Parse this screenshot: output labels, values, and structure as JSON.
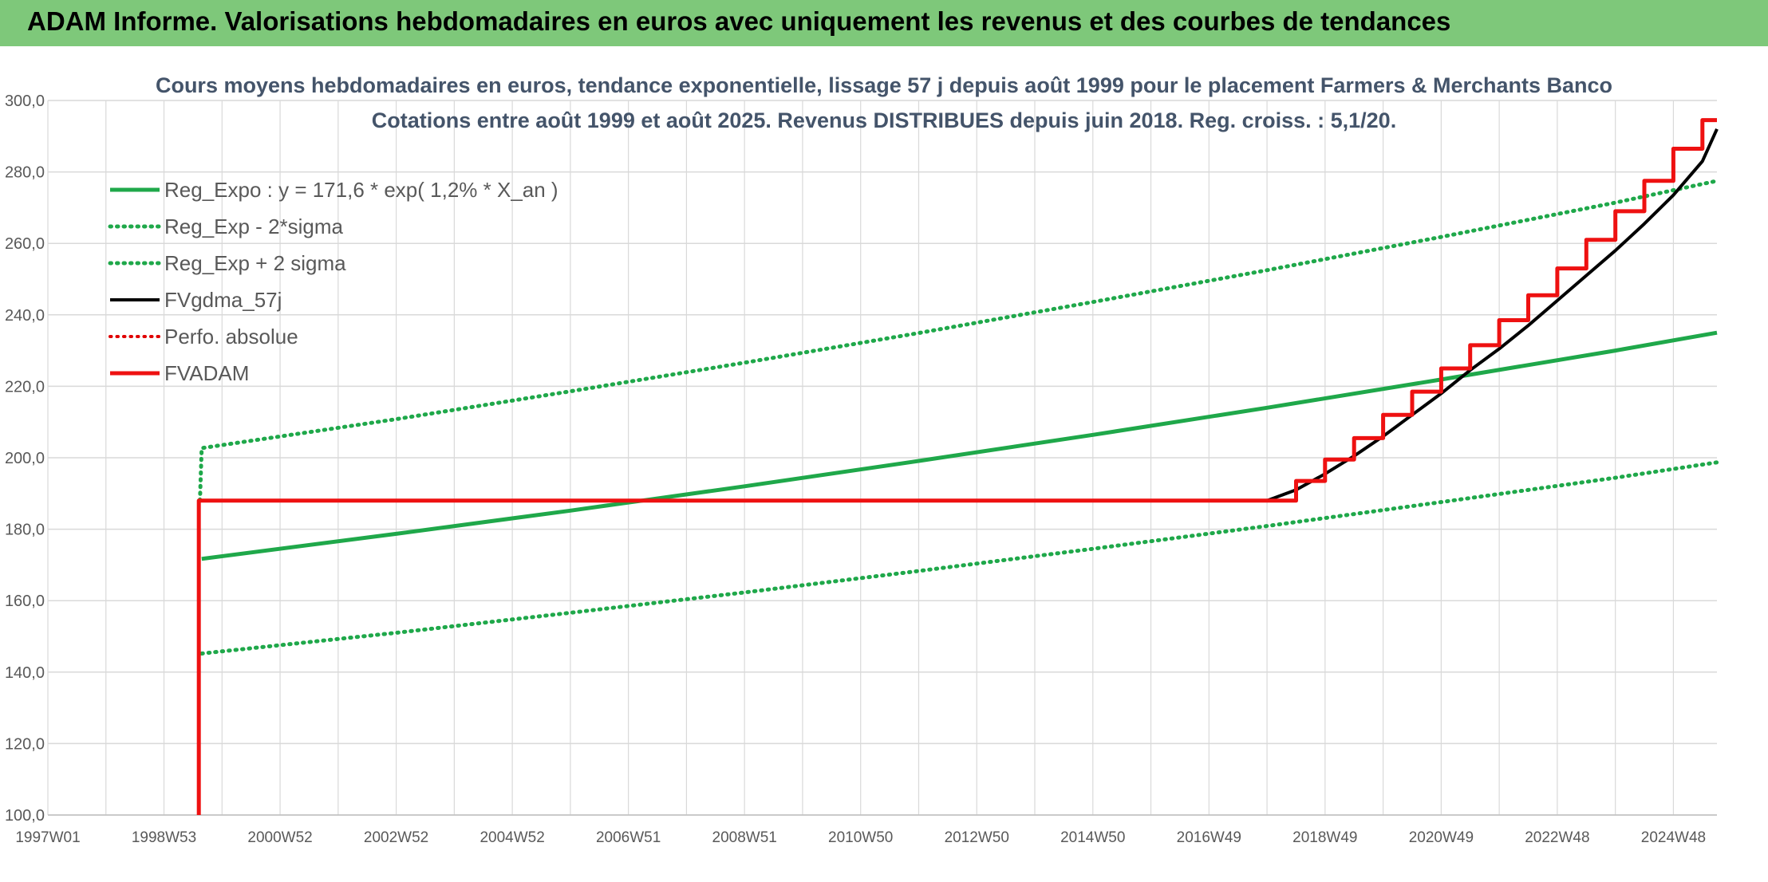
{
  "header": {
    "title": "ADAM Informe. Valorisations hebdomadaires en euros avec uniquement les revenus et des courbes de tendances"
  },
  "colors": {
    "banner": "#7ec87a",
    "reg_expo": "#1fa84a",
    "sigma": "#1fa84a",
    "fvgdma": "#000000",
    "perfo": "#e00000",
    "fvadam": "#ee1111",
    "grid": "#d9d9d9",
    "axis_text": "#595959",
    "title_text": "#44546a"
  },
  "chart_data": {
    "type": "line",
    "title": "Cours moyens hebdomadaires en euros, tendance exponentielle, lissage 57 j depuis août 1999 pour le placement Farmers & Merchants Banco",
    "subtitle": "Cotations entre août 1999 et août 2025. Revenus DISTRIBUES depuis juin 2018. Reg. croiss. : 5,1/20.",
    "xlabel": "",
    "ylabel": "",
    "ylim": [
      100,
      300
    ],
    "yticks": [
      "100,0",
      "120,0",
      "140,0",
      "160,0",
      "180,0",
      "200,0",
      "220,0",
      "240,0",
      "260,0",
      "280,0",
      "300,0"
    ],
    "xlim": [
      1997.0,
      2025.75
    ],
    "xticks": [
      {
        "label": "1997W01",
        "x": 1997.0
      },
      {
        "label": "1998W53",
        "x": 1999.0
      },
      {
        "label": "2000W52",
        "x": 2001.0
      },
      {
        "label": "2002W52",
        "x": 2003.0
      },
      {
        "label": "2004W52",
        "x": 2005.0
      },
      {
        "label": "2006W51",
        "x": 2007.0
      },
      {
        "label": "2008W51",
        "x": 2009.0
      },
      {
        "label": "2010W50",
        "x": 2011.0
      },
      {
        "label": "2012W50",
        "x": 2013.0
      },
      {
        "label": "2014W50",
        "x": 2015.0
      },
      {
        "label": "2016W49",
        "x": 2017.0
      },
      {
        "label": "2018W49",
        "x": 2019.0
      },
      {
        "label": "2020W49",
        "x": 2021.0
      },
      {
        "label": "2022W48",
        "x": 2023.0
      },
      {
        "label": "2024W48",
        "x": 2025.0
      }
    ],
    "grid": true,
    "legend_position": "top-left",
    "series": [
      {
        "name": "Reg_Expo : y = 171,6 * exp( 1,2% *  X_an )",
        "style": "solid",
        "color": "#1fa84a",
        "width": 5,
        "x": [
          1999.65,
          2003.0,
          2006.0,
          2009.0,
          2012.0,
          2015.0,
          2018.0,
          2021.0,
          2024.0,
          2025.75
        ],
        "y": [
          171.7,
          178.7,
          185.2,
          192.0,
          199.1,
          206.4,
          214.0,
          221.9,
          230.0,
          235.0
        ]
      },
      {
        "name": "Reg_Exp - 2*sigma",
        "style": "dotted",
        "color": "#1fa84a",
        "width": 5,
        "x": [
          1999.65,
          2003.0,
          2006.0,
          2009.0,
          2012.0,
          2015.0,
          2018.0,
          2021.0,
          2024.0,
          2025.75
        ],
        "y": [
          145.2,
          151.0,
          156.6,
          162.3,
          168.3,
          174.5,
          180.9,
          187.6,
          194.4,
          198.7
        ]
      },
      {
        "name": "Reg_Exp + 2 sigma",
        "style": "dotted",
        "color": "#1fa84a",
        "width": 5,
        "x": [
          1999.62,
          1999.65,
          2003.0,
          2006.0,
          2009.0,
          2012.0,
          2015.0,
          2018.0,
          2021.0,
          2024.0,
          2025.75
        ],
        "y": [
          188.0,
          202.7,
          210.8,
          218.6,
          226.6,
          234.9,
          243.6,
          252.5,
          261.8,
          271.4,
          277.5
        ]
      },
      {
        "name": "FVgdma_57j",
        "style": "solid",
        "color": "#000000",
        "width": 4,
        "x": [
          2018.0,
          2018.5,
          2019.0,
          2019.5,
          2020.0,
          2020.5,
          2021.0,
          2021.5,
          2022.0,
          2022.5,
          2023.0,
          2023.5,
          2024.0,
          2024.5,
          2025.0,
          2025.5,
          2025.75
        ],
        "y": [
          188.0,
          191.0,
          195.5,
          200.5,
          206.0,
          212.0,
          218.0,
          224.5,
          230.5,
          237.0,
          244.0,
          251.0,
          258.0,
          265.5,
          273.5,
          283.0,
          292.0
        ]
      },
      {
        "name": "Perfo. absolue",
        "style": "dotted",
        "color": "#e00000",
        "width": 4,
        "x": [],
        "y": []
      },
      {
        "name": "FVADAM",
        "style": "solid",
        "color": "#ee1111",
        "width": 5,
        "x": [
          1999.6,
          1999.6,
          2018.5,
          2018.5,
          2019.0,
          2019.0,
          2019.5,
          2019.5,
          2020.0,
          2020.0,
          2020.5,
          2020.5,
          2021.0,
          2021.0,
          2021.5,
          2021.5,
          2022.0,
          2022.0,
          2022.5,
          2022.5,
          2023.0,
          2023.0,
          2023.5,
          2023.5,
          2024.0,
          2024.0,
          2024.5,
          2024.5,
          2025.0,
          2025.0,
          2025.5,
          2025.5,
          2025.75
        ],
        "y": [
          100.0,
          188.0,
          188.0,
          193.5,
          193.5,
          199.5,
          199.5,
          205.5,
          205.5,
          212.0,
          212.0,
          218.5,
          218.5,
          225.0,
          225.0,
          231.5,
          231.5,
          238.5,
          238.5,
          245.5,
          245.5,
          253.0,
          253.0,
          261.0,
          261.0,
          269.0,
          269.0,
          277.5,
          277.5,
          286.5,
          286.5,
          294.5,
          294.5
        ]
      }
    ]
  }
}
